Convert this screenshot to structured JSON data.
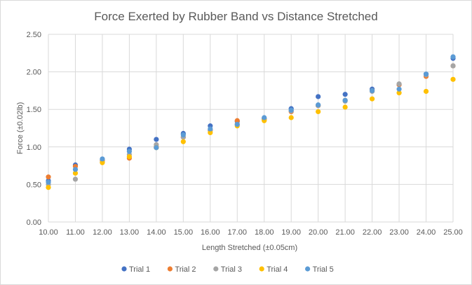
{
  "chart_data": {
    "type": "scatter",
    "title": "Force Exerted by Rubber Band vs Distance Stretched",
    "xlabel": "Length  Stretched  (±0.05cm)",
    "ylabel": "Force (±0.02lb)",
    "xlim": [
      10,
      25
    ],
    "ylim": [
      0,
      2.5
    ],
    "x": [
      10,
      11,
      12,
      13,
      14,
      15,
      16,
      17,
      18,
      19,
      20,
      21,
      22,
      23,
      24,
      25
    ],
    "x_ticks": [
      "10.00",
      "11.00",
      "12.00",
      "13.00",
      "14.00",
      "15.00",
      "16.00",
      "17.00",
      "18.00",
      "19.00",
      "20.00",
      "21.00",
      "22.00",
      "23.00",
      "24.00",
      "25.00"
    ],
    "y_ticks": [
      "0.00",
      "0.50",
      "1.00",
      "1.50",
      "2.00",
      "2.50"
    ],
    "grid": true,
    "legend_position": "bottom",
    "series": [
      {
        "name": "Trial 1",
        "color": "#4472C4",
        "values": [
          0.55,
          0.76,
          0.83,
          0.97,
          1.1,
          1.18,
          1.28,
          1.34,
          1.38,
          1.51,
          1.67,
          1.7,
          1.77,
          1.83,
          1.97,
          2.18
        ]
      },
      {
        "name": "Trial 2",
        "color": "#ED7D31",
        "values": [
          0.6,
          0.74,
          0.82,
          0.85,
          1.0,
          1.13,
          1.22,
          1.35,
          1.37,
          1.47,
          1.55,
          1.62,
          1.75,
          1.83,
          1.94,
          2.08
        ]
      },
      {
        "name": "Trial 3",
        "color": "#A5A5A5",
        "values": [
          0.5,
          0.57,
          0.8,
          0.9,
          1.03,
          1.13,
          1.22,
          1.3,
          1.36,
          1.48,
          1.55,
          1.61,
          1.74,
          1.84,
          1.96,
          2.08
        ]
      },
      {
        "name": "Trial 4",
        "color": "#FFC000",
        "values": [
          0.46,
          0.65,
          0.79,
          0.87,
          0.99,
          1.07,
          1.19,
          1.28,
          1.35,
          1.39,
          1.47,
          1.53,
          1.64,
          1.72,
          1.74,
          1.9
        ]
      },
      {
        "name": "Trial 5",
        "color": "#5B9BD5",
        "values": [
          0.53,
          0.7,
          0.84,
          0.94,
          0.99,
          1.16,
          1.24,
          1.3,
          1.39,
          1.49,
          1.56,
          1.62,
          1.75,
          1.77,
          1.97,
          2.2
        ]
      }
    ]
  }
}
